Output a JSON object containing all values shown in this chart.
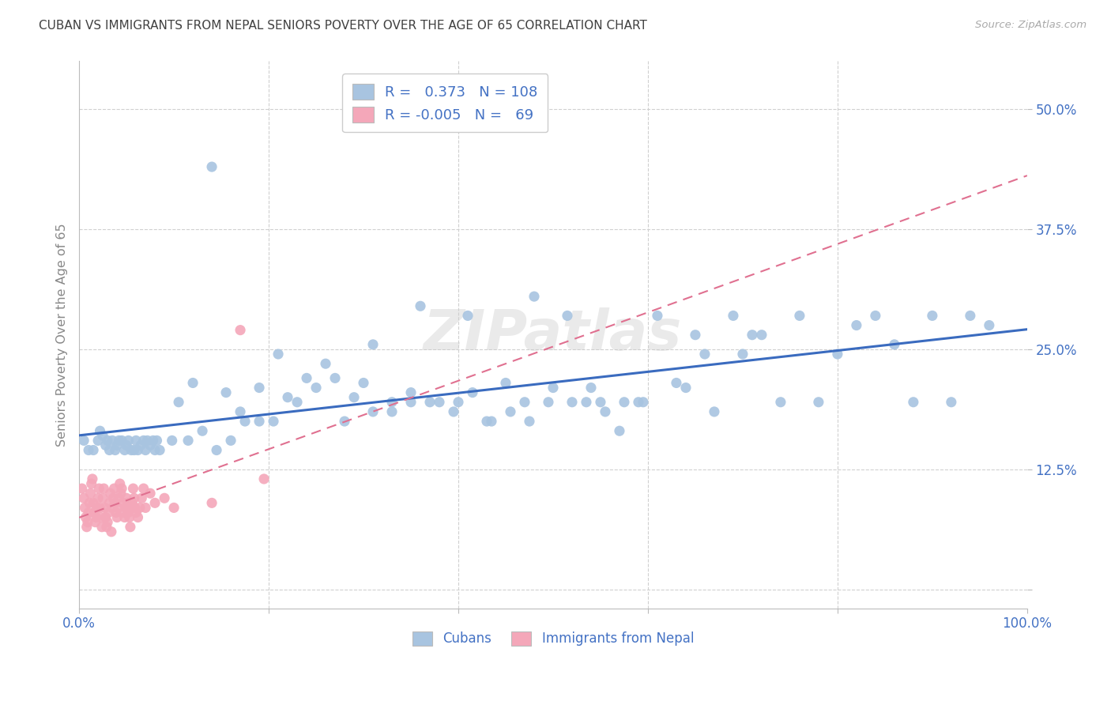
{
  "title": "CUBAN VS IMMIGRANTS FROM NEPAL SENIORS POVERTY OVER THE AGE OF 65 CORRELATION CHART",
  "source": "Source: ZipAtlas.com",
  "ylabel": "Seniors Poverty Over the Age of 65",
  "xlim": [
    0.0,
    1.0
  ],
  "ylim": [
    -0.02,
    0.55
  ],
  "yticks": [
    0.0,
    0.125,
    0.25,
    0.375,
    0.5
  ],
  "ytick_labels": [
    "",
    "12.5%",
    "25.0%",
    "37.5%",
    "50.0%"
  ],
  "xticks": [
    0.0,
    0.2,
    0.4,
    0.6,
    0.8,
    1.0
  ],
  "xtick_labels": [
    "0.0%",
    "",
    "",
    "",
    "",
    "100.0%"
  ],
  "cubans_R": 0.373,
  "cubans_N": 108,
  "nepal_R": -0.005,
  "nepal_N": 69,
  "blue_color": "#a8c4e0",
  "pink_color": "#f4a7b9",
  "blue_line_color": "#3a6bbf",
  "pink_line_color": "#e07090",
  "title_color": "#404040",
  "axis_color": "#4472c4",
  "legend_R_color": "#4472c4",
  "watermark": "ZIPatlas",
  "background_color": "#ffffff",
  "cubans_x": [
    0.005,
    0.01,
    0.015,
    0.02,
    0.022,
    0.025,
    0.028,
    0.03,
    0.032,
    0.035,
    0.038,
    0.04,
    0.042,
    0.045,
    0.048,
    0.05,
    0.052,
    0.055,
    0.058,
    0.06,
    0.062,
    0.065,
    0.068,
    0.07,
    0.072,
    0.075,
    0.078,
    0.08,
    0.082,
    0.085,
    0.12,
    0.14,
    0.155,
    0.17,
    0.19,
    0.21,
    0.22,
    0.24,
    0.26,
    0.28,
    0.3,
    0.31,
    0.33,
    0.35,
    0.36,
    0.38,
    0.4,
    0.41,
    0.43,
    0.45,
    0.47,
    0.48,
    0.5,
    0.52,
    0.54,
    0.55,
    0.57,
    0.59,
    0.61,
    0.63,
    0.65,
    0.67,
    0.69,
    0.7,
    0.72,
    0.74,
    0.76,
    0.78,
    0.8,
    0.82,
    0.84,
    0.86,
    0.88,
    0.9,
    0.92,
    0.94,
    0.96,
    0.098,
    0.105,
    0.115,
    0.13,
    0.145,
    0.16,
    0.175,
    0.19,
    0.205,
    0.23,
    0.25,
    0.27,
    0.29,
    0.31,
    0.33,
    0.35,
    0.37,
    0.395,
    0.415,
    0.435,
    0.455,
    0.475,
    0.495,
    0.515,
    0.535,
    0.555,
    0.575,
    0.595,
    0.64,
    0.66,
    0.71
  ],
  "cubans_y": [
    0.155,
    0.145,
    0.145,
    0.155,
    0.165,
    0.16,
    0.15,
    0.155,
    0.145,
    0.155,
    0.145,
    0.15,
    0.155,
    0.155,
    0.145,
    0.15,
    0.155,
    0.145,
    0.145,
    0.155,
    0.145,
    0.15,
    0.155,
    0.145,
    0.155,
    0.15,
    0.155,
    0.145,
    0.155,
    0.145,
    0.215,
    0.44,
    0.205,
    0.185,
    0.21,
    0.245,
    0.2,
    0.22,
    0.235,
    0.175,
    0.215,
    0.255,
    0.185,
    0.195,
    0.295,
    0.195,
    0.195,
    0.285,
    0.175,
    0.215,
    0.195,
    0.305,
    0.21,
    0.195,
    0.21,
    0.195,
    0.165,
    0.195,
    0.285,
    0.215,
    0.265,
    0.185,
    0.285,
    0.245,
    0.265,
    0.195,
    0.285,
    0.195,
    0.245,
    0.275,
    0.285,
    0.255,
    0.195,
    0.285,
    0.195,
    0.285,
    0.275,
    0.155,
    0.195,
    0.155,
    0.165,
    0.145,
    0.155,
    0.175,
    0.175,
    0.175,
    0.195,
    0.21,
    0.22,
    0.2,
    0.185,
    0.195,
    0.205,
    0.195,
    0.185,
    0.205,
    0.175,
    0.185,
    0.175,
    0.195,
    0.285,
    0.195,
    0.185,
    0.195,
    0.195,
    0.21,
    0.245,
    0.265
  ],
  "nepal_x": [
    0.003,
    0.005,
    0.006,
    0.007,
    0.008,
    0.009,
    0.01,
    0.011,
    0.012,
    0.013,
    0.014,
    0.015,
    0.016,
    0.017,
    0.018,
    0.019,
    0.02,
    0.021,
    0.022,
    0.023,
    0.024,
    0.025,
    0.026,
    0.027,
    0.028,
    0.029,
    0.03,
    0.031,
    0.032,
    0.033,
    0.034,
    0.035,
    0.036,
    0.037,
    0.038,
    0.039,
    0.04,
    0.041,
    0.042,
    0.043,
    0.044,
    0.045,
    0.046,
    0.047,
    0.048,
    0.049,
    0.05,
    0.051,
    0.052,
    0.053,
    0.054,
    0.055,
    0.056,
    0.057,
    0.058,
    0.059,
    0.06,
    0.062,
    0.064,
    0.066,
    0.068,
    0.07,
    0.075,
    0.08,
    0.09,
    0.1,
    0.14,
    0.17,
    0.195
  ],
  "nepal_y": [
    0.105,
    0.095,
    0.085,
    0.075,
    0.065,
    0.07,
    0.08,
    0.09,
    0.1,
    0.11,
    0.115,
    0.09,
    0.08,
    0.07,
    0.075,
    0.085,
    0.095,
    0.105,
    0.085,
    0.075,
    0.065,
    0.095,
    0.105,
    0.085,
    0.075,
    0.065,
    0.07,
    0.08,
    0.09,
    0.1,
    0.06,
    0.085,
    0.095,
    0.105,
    0.09,
    0.08,
    0.075,
    0.085,
    0.095,
    0.11,
    0.1,
    0.105,
    0.09,
    0.08,
    0.075,
    0.085,
    0.095,
    0.09,
    0.08,
    0.075,
    0.065,
    0.085,
    0.09,
    0.105,
    0.095,
    0.085,
    0.08,
    0.075,
    0.085,
    0.095,
    0.105,
    0.085,
    0.1,
    0.09,
    0.095,
    0.085,
    0.09,
    0.27,
    0.115
  ]
}
